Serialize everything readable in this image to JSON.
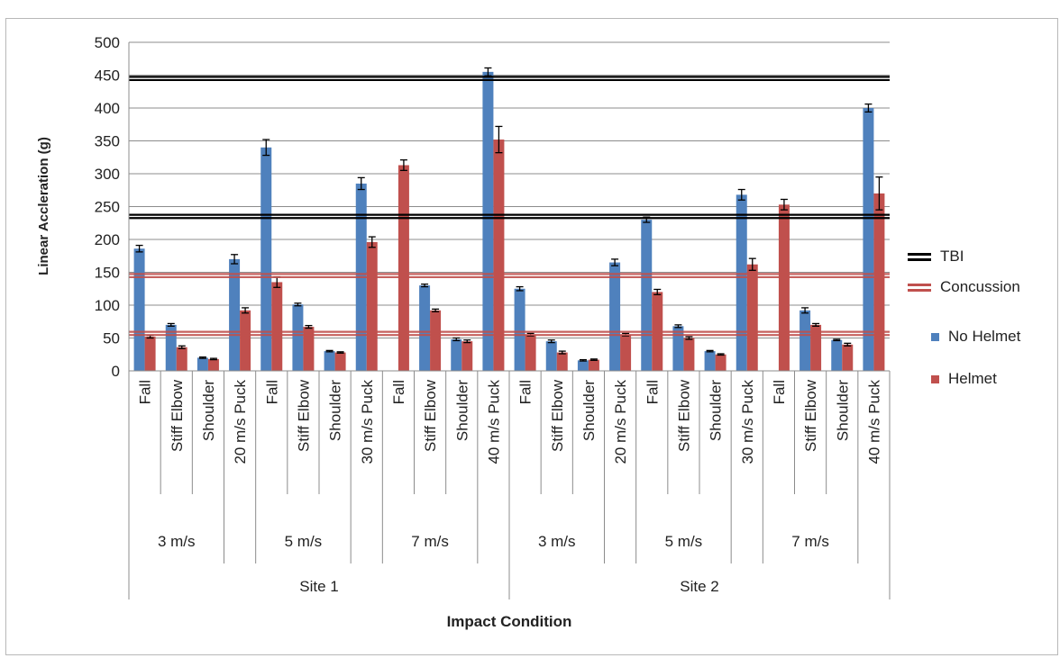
{
  "chart_data": {
    "type": "bar",
    "ylabel": "Linear Accleration (g)",
    "xlabel": "Impact Condition",
    "ylim": [
      0,
      500
    ],
    "yticks": [
      0,
      50,
      100,
      150,
      200,
      250,
      300,
      350,
      400,
      450,
      500
    ],
    "grid": true,
    "legend_position": "right",
    "categories": [
      "Fall",
      "Stiff Elbow",
      "Shoulder",
      "20 m/s Puck",
      "Fall",
      "Stiff Elbow",
      "Shoulder",
      "30 m/s Puck",
      "Fall",
      "Stiff Elbow",
      "Shoulder",
      "40 m/s Puck",
      "Fall",
      "Stiff Elbow",
      "Shoulder",
      "20 m/s Puck",
      "Fall",
      "Stiff Elbow",
      "Shoulder",
      "30 m/s Puck",
      "Fall",
      "Stiff Elbow",
      "Shoulder",
      "40 m/s Puck"
    ],
    "velocity_groups": [
      {
        "label": "3 m/s",
        "span": 3
      },
      {
        "label": "",
        "span": 1
      },
      {
        "label": "5 m/s",
        "span": 3
      },
      {
        "label": "",
        "span": 1
      },
      {
        "label": "7 m/s",
        "span": 3
      },
      {
        "label": "",
        "span": 1
      },
      {
        "label": "3 m/s",
        "span": 3
      },
      {
        "label": "",
        "span": 1
      },
      {
        "label": "5 m/s",
        "span": 3
      },
      {
        "label": "",
        "span": 1
      },
      {
        "label": "7 m/s",
        "span": 3
      },
      {
        "label": "",
        "span": 1
      }
    ],
    "site_groups": [
      {
        "label": "Site 1",
        "span": 12
      },
      {
        "label": "Site 2",
        "span": 12
      }
    ],
    "series": [
      {
        "name": "No Helmet",
        "color": "#4f81bd",
        "values": [
          186,
          70,
          20,
          170,
          340,
          101,
          30,
          285,
          null,
          130,
          48,
          455,
          125,
          45,
          16,
          165,
          230,
          68,
          30,
          268,
          null,
          92,
          47,
          400
        ],
        "errors": [
          5,
          2,
          1,
          7,
          12,
          2,
          1,
          9,
          null,
          2,
          2,
          6,
          3,
          2,
          1,
          5,
          4,
          2,
          1,
          8,
          null,
          4,
          1,
          6
        ]
      },
      {
        "name": "Helmet",
        "color": "#c0504d",
        "values": [
          52,
          36,
          18,
          92,
          135,
          67,
          28,
          196,
          313,
          92,
          45,
          352,
          55,
          28,
          17,
          55,
          120,
          50,
          25,
          162,
          253,
          70,
          40,
          270
        ],
        "errors": [
          2,
          2,
          1,
          4,
          8,
          2,
          1,
          8,
          8,
          2,
          2,
          20,
          2,
          2,
          1,
          2,
          4,
          2,
          1,
          9,
          8,
          2,
          2,
          25
        ]
      }
    ],
    "reference_lines": [
      {
        "name": "TBI",
        "values": [
          445,
          235
        ],
        "color": "#000000"
      },
      {
        "name": "Concussion",
        "values": [
          145,
          57
        ],
        "color": "#c0504d"
      }
    ]
  }
}
